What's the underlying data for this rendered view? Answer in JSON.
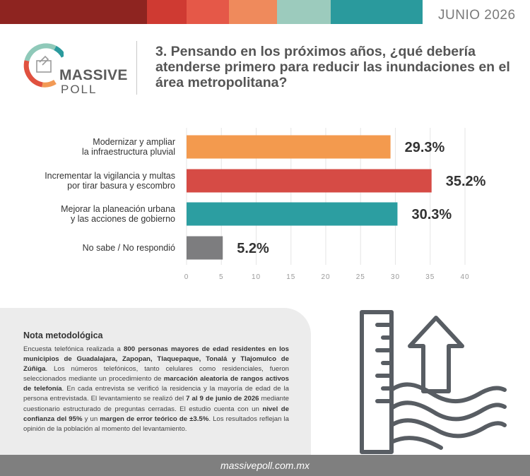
{
  "header": {
    "date": "JUNIO 2026",
    "strip_colors": [
      "#8e2420",
      "#cf3a32",
      "#e55848",
      "#ef8a5c",
      "#9ccbbd",
      "#2a9a9d",
      "#ffffff"
    ]
  },
  "logo": {
    "line1": "MASSIVE",
    "line2": "POLL"
  },
  "question": "3. Pensando en los próximos años, ¿qué debería atenderse primero para reducir las inundaciones en el área metropolitana?",
  "chart_data": {
    "type": "bar",
    "orientation": "horizontal",
    "categories": [
      [
        "Modernizar y ampliar",
        "la infraestructura pluvial"
      ],
      [
        "Incrementar la vigilancia y multas",
        "por tirar basura y escombro"
      ],
      [
        "Mejorar la planeación urbana",
        "y las acciones de gobierno"
      ],
      [
        "No sabe / No respondió"
      ]
    ],
    "values": [
      29.3,
      35.2,
      30.3,
      5.2
    ],
    "value_labels": [
      "29.3%",
      "35.2%",
      "30.3%",
      "5.2%"
    ],
    "colors": [
      "#f39a4e",
      "#d64b45",
      "#2c9ea1",
      "#7d7d7f"
    ],
    "xlim": [
      0,
      40
    ],
    "xticks": [
      "0",
      "5",
      "10",
      "15",
      "20",
      "25",
      "30",
      "35",
      "40"
    ],
    "grid": true
  },
  "note": {
    "title": "Nota metodológica",
    "segments": [
      {
        "t": "Encuesta telefónica realizada a ",
        "b": false
      },
      {
        "t": "800 personas mayores de edad residentes en los municipios de Guadalajara, Zapopan, Tlaquepaque, Tonalá y Tlajomulco de Zúñiga",
        "b": true
      },
      {
        "t": ". Los números telefónicos, tanto celulares como residenciales, fueron seleccionados mediante un procedimiento de ",
        "b": false
      },
      {
        "t": "marcación aleatoria de rangos activos de telefonía",
        "b": true
      },
      {
        "t": ". En cada entrevista se verificó la residencia y la mayoría de edad de la persona entrevistada. El levantamiento se realizó del ",
        "b": false
      },
      {
        "t": "7 al 9 de junio de 2026",
        "b": true
      },
      {
        "t": " mediante cuestionario estructurado de preguntas cerradas. El estudio cuenta con un ",
        "b": false
      },
      {
        "t": "nivel de confianza del 95%",
        "b": true
      },
      {
        "t": " y un ",
        "b": false
      },
      {
        "t": "margen de error teórico de ±3.5%",
        "b": true
      },
      {
        "t": ". Los resultados reflejan la opinión de la población al momento del levantamiento.",
        "b": false
      }
    ]
  },
  "footer": {
    "url": "massivepoll.com.mx"
  },
  "icons": {
    "logo": "massive-poll-logo-icon",
    "illustration": "flood-water-level-icon"
  }
}
